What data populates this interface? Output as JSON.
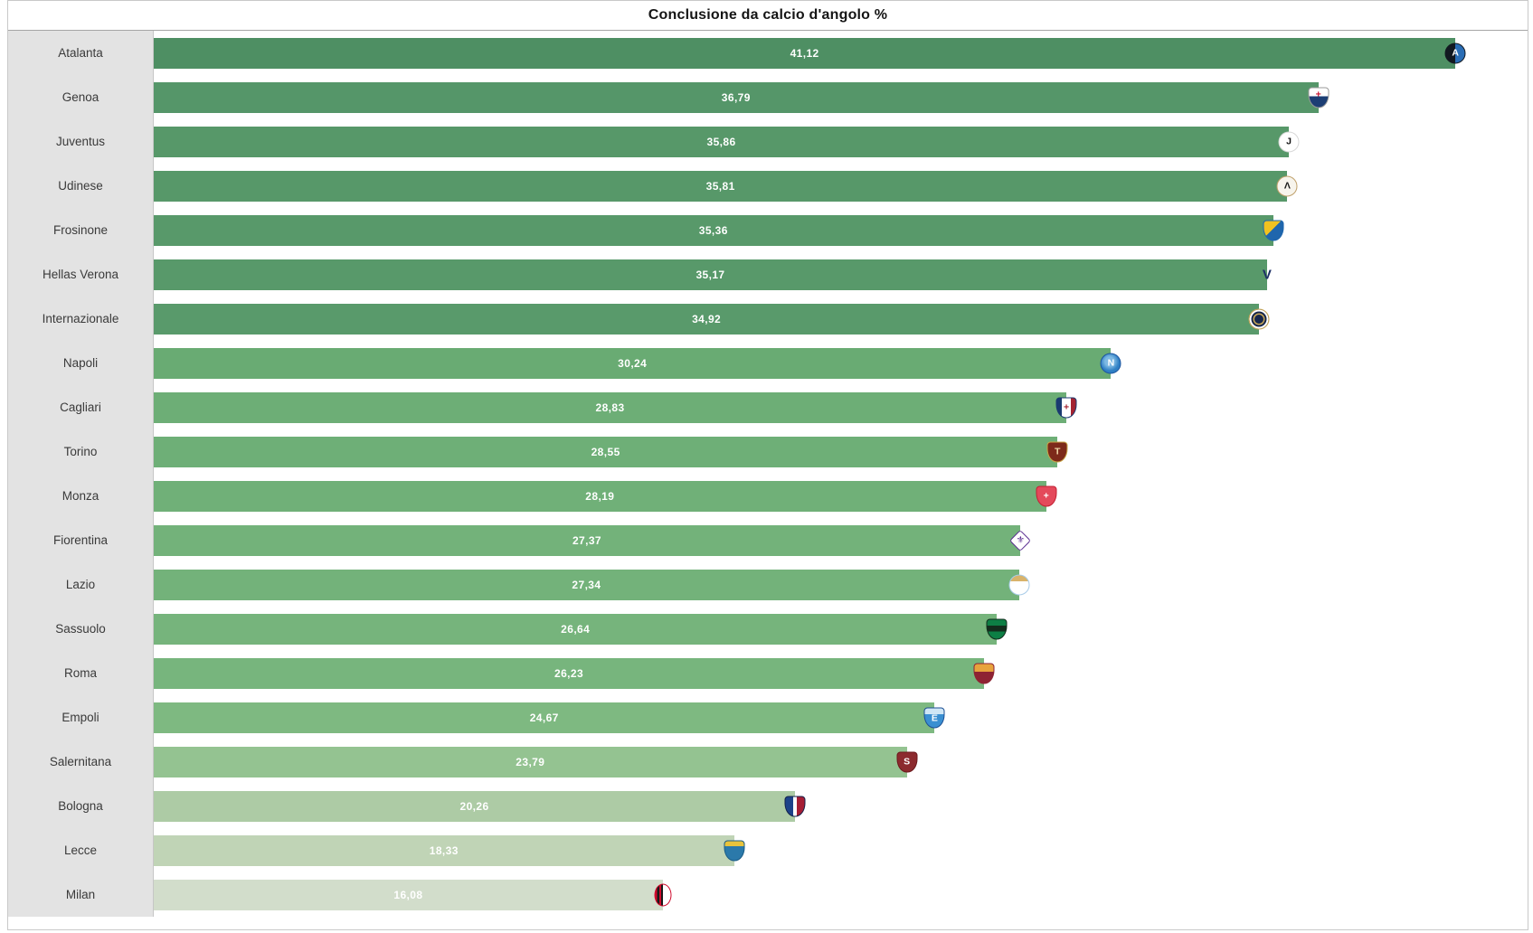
{
  "chart_data": {
    "type": "bar",
    "orientation": "horizontal",
    "title": "Conclusione da calcio d'angolo %",
    "value_suffix": "%",
    "axis_max": 43.4,
    "decimal_separator": ",",
    "grid": false,
    "legend": "none",
    "categories": [
      "Atalanta",
      "Genoa",
      "Juventus",
      "Udinese",
      "Frosinone",
      "Hellas Verona",
      "Internazionale",
      "Napoli",
      "Cagliari",
      "Torino",
      "Monza",
      "Fiorentina",
      "Lazio",
      "Sassuolo",
      "Roma",
      "Empoli",
      "Salernitana",
      "Bologna",
      "Lecce",
      "Milan"
    ],
    "values": [
      41.12,
      36.79,
      35.86,
      35.81,
      35.36,
      35.17,
      34.92,
      30.24,
      28.83,
      28.55,
      28.19,
      27.37,
      27.34,
      26.64,
      26.23,
      24.67,
      23.79,
      20.26,
      18.33,
      16.08
    ],
    "value_labels": [
      "41,12",
      "36,79",
      "35,86",
      "35,81",
      "35,36",
      "35,17",
      "34,92",
      "30,24",
      "28,83",
      "28,55",
      "28,19",
      "27,37",
      "27,34",
      "26,64",
      "26,23",
      "24,67",
      "23,79",
      "20,26",
      "18,33",
      "16,08"
    ],
    "bar_colors": [
      "#4e8f63",
      "#559669",
      "#579869",
      "#579869",
      "#58996a",
      "#58996a",
      "#599a6b",
      "#69ab73",
      "#6dae76",
      "#6eaf77",
      "#70b078",
      "#73b27a",
      "#73b27a",
      "#76b47c",
      "#77b57d",
      "#7eb981",
      "#94c391",
      "#adcba5",
      "#c0d4b6",
      "#d2ddcb"
    ],
    "logos": [
      {
        "shape": "circle",
        "bg": "linear-gradient(90deg,#121921 50%,#2a6db5 50%)",
        "border": "#121921",
        "letter": "A",
        "letter_color": "#ffffff"
      },
      {
        "shape": "shield",
        "bg": "linear-gradient(180deg,#ffffff 0 42%,#1c3e74 42%)",
        "border": "#9a9a9a",
        "letter": "+",
        "letter_color": "#c8102e",
        "letter_dy": -5
      },
      {
        "shape": "circle",
        "bg": "#ffffff",
        "border": "#d8d8d8",
        "letter": "J",
        "letter_color": "#111111"
      },
      {
        "shape": "circle",
        "bg": "#f7f4ec",
        "border": "#bfa06a",
        "letter": "Λ",
        "letter_color": "#1a1a1a"
      },
      {
        "shape": "shield",
        "bg": "linear-gradient(135deg,#f2c21f 0 45%,#1f66ad 45%)",
        "border": "#1f66ad",
        "letter": ""
      },
      {
        "shape": "none",
        "bg": "transparent",
        "border": "transparent",
        "letter": "V",
        "letter_color": "#1d2f66",
        "letter_size": 15
      },
      {
        "shape": "circle",
        "bg": "#16264a",
        "border": "#c9a857",
        "letter": "",
        "rings": true
      },
      {
        "shape": "circle",
        "bg": "radial-gradient(circle at 45% 40%,#7db9e3 0 30%,#2f7fc4 60%)",
        "border": "#1d55a0",
        "letter": "N",
        "letter_color": "#ffffff"
      },
      {
        "shape": "shield",
        "bg": "linear-gradient(90deg,#1a3a70 0 26%,#ffffff 26% 74%,#a42331 74%)",
        "border": "#1a3a70",
        "letter": "+",
        "letter_color": "#a42331"
      },
      {
        "shape": "shield",
        "bg": "#7d2a1a",
        "border": "#c9a648",
        "letter": "T",
        "letter_color": "#f0d9a8"
      },
      {
        "shape": "shield",
        "bg": "#e4495b",
        "border": "#c22033",
        "letter": "+",
        "letter_color": "#ffffff"
      },
      {
        "shape": "diamond",
        "bg": "#ffffff",
        "border": "#5a2d91",
        "letter": "⚜",
        "letter_color": "#5a2d91"
      },
      {
        "shape": "circle",
        "bg": "linear-gradient(180deg,#d9b36a 0 32%,#ffffff 32%)",
        "border": "#a8cbe8",
        "letter": ""
      },
      {
        "shape": "shield",
        "bg": "linear-gradient(180deg,#0d7f45 0 30%,#132d1d 30% 62%,#0d7f45 62%)",
        "border": "#132d1d",
        "letter": ""
      },
      {
        "shape": "shield",
        "bg": "linear-gradient(180deg,#e8a33d 0 40%,#8e2333 40%)",
        "border": "#8e2333",
        "letter": ""
      },
      {
        "shape": "shield",
        "bg": "linear-gradient(180deg,#cfe6f5 0 30%,#3a8fd1 30%)",
        "border": "#1d4f94",
        "letter": "E",
        "letter_color": "#ffffff",
        "letter_dy": 2
      },
      {
        "shape": "shield",
        "bg": "#8c2a2e",
        "border": "#6b181c",
        "letter": "S",
        "letter_color": "#ffffff"
      },
      {
        "shape": "shield",
        "bg": "linear-gradient(90deg,#1d4289 0 40%,#ffffff 40% 60%,#a61e35 60%)",
        "border": "#14224a",
        "letter": ""
      },
      {
        "shape": "shield",
        "bg": "linear-gradient(180deg,#e8c33c 0 26%,#2b79aa 26%)",
        "border": "#1b5c85",
        "letter": ""
      },
      {
        "shape": "oval",
        "bg": "linear-gradient(90deg,#cf0a2c 0 12%,#191919 12% 25%,#cf0a2c 25% 37%,#191919 37% 50%,#ffffff 50%)",
        "border": "#cf0a2c",
        "letter": ""
      }
    ]
  },
  "colors": {
    "frame_border": "#c9c9c9",
    "title_underline": "#a6a6a6",
    "label_column_bg": "#e3e3e3",
    "value_text": "#ffffff",
    "title_text": "#151515"
  }
}
